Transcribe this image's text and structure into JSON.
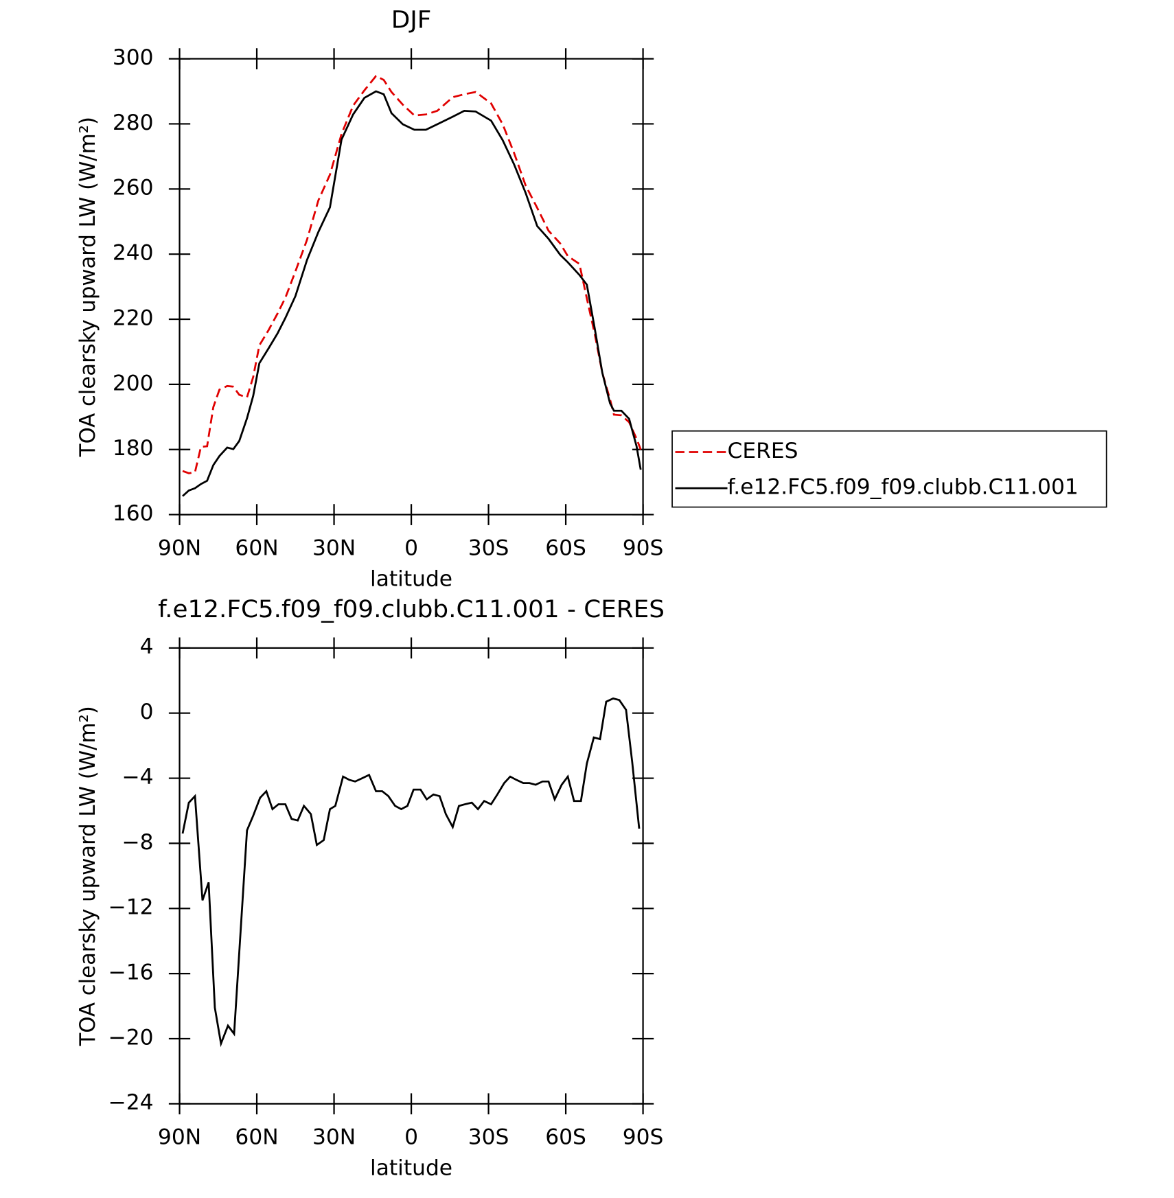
{
  "chart_data": [
    {
      "type": "line",
      "title": "DJF",
      "ylabel": "TOA clearsky upward LW (W/m²)",
      "xlabel": "latitude",
      "x": [
        88.8,
        86.4,
        84.0,
        81.7,
        79.3,
        76.9,
        74.5,
        71.5,
        69.1,
        66.8,
        63.8,
        61.4,
        59.0,
        55.4,
        51.9,
        48.9,
        45.0,
        40.5,
        36.1,
        31.6,
        27.1,
        22.6,
        18.2,
        13.7,
        10.7,
        7.7,
        3.3,
        -1.2,
        -5.7,
        -10.1,
        -16.1,
        -20.6,
        -25.0,
        -31.0,
        -35.5,
        -39.9,
        -44.4,
        -48.9,
        -53.3,
        -57.8,
        -60.8,
        -65.3,
        -68.2,
        -71.2,
        -74.2,
        -77.2,
        -78.7,
        -81.6,
        -84.6,
        -87.5,
        -89.1
      ],
      "series": [
        {
          "name": "CERES",
          "color": "#e00000",
          "dash": true,
          "values": [
            173.4,
            172.7,
            173,
            180.8,
            181,
            193,
            198.4,
            199.5,
            199.3,
            196.8,
            196,
            202.3,
            212,
            216.7,
            221.8,
            226.6,
            234.7,
            244.4,
            256.5,
            264.4,
            276.9,
            285.6,
            290.3,
            294.7,
            293.5,
            289.8,
            285.9,
            282.6,
            282.9,
            284,
            288.2,
            289.1,
            289.8,
            286.3,
            279.9,
            271.1,
            261.1,
            254.2,
            247.2,
            243.3,
            239.4,
            237,
            226.4,
            215.7,
            203.5,
            195.4,
            190.7,
            190.5,
            188.4,
            183.3,
            180
          ]
        },
        {
          "name": "f.e12.FC5.f09_f09.clubb.C11.001",
          "color": "#000000",
          "dash": false,
          "values": [
            165.7,
            167.4,
            168.1,
            169.4,
            170.4,
            175.2,
            178,
            180.6,
            180.1,
            182.6,
            189.6,
            196.5,
            206.5,
            211.1,
            215.7,
            220.4,
            227.1,
            238.2,
            246.8,
            254.4,
            275.2,
            282.9,
            288,
            290,
            289.1,
            283.3,
            279.9,
            278.2,
            278.2,
            279.9,
            282.2,
            284,
            283.8,
            281,
            275,
            267.6,
            258.8,
            248.6,
            244.7,
            239.8,
            237.5,
            233.6,
            230.6,
            217.4,
            203.5,
            194.2,
            191.9,
            191.9,
            189.4,
            181,
            173.8
          ]
        }
      ],
      "xlim": [
        90,
        -90
      ],
      "xticks": [
        {
          "value": 90,
          "label": "90N"
        },
        {
          "value": 60,
          "label": "60N"
        },
        {
          "value": 30,
          "label": "30N"
        },
        0,
        {
          "value": -30,
          "label": "30S"
        },
        {
          "value": -60,
          "label": "60S"
        },
        {
          "value": -90,
          "label": "90S"
        }
      ],
      "ylim": [
        160,
        300
      ],
      "yticks": [
        160,
        180,
        200,
        220,
        240,
        260,
        280,
        300
      ],
      "legend": "right"
    },
    {
      "type": "line",
      "title": "f.e12.FC5.f09_f09.clubb.C11.001 - CERES",
      "ylabel": "TOA clearsky upward LW (W/m²)",
      "xlabel": "latitude",
      "x": [
        88.8,
        86.4,
        84.0,
        81.1,
        78.7,
        76.3,
        73.9,
        71.2,
        68.8,
        63.8,
        61.4,
        58.7,
        56.3,
        53.9,
        51.6,
        48.9,
        46.5,
        44.1,
        41.7,
        39.0,
        36.7,
        34.0,
        31.6,
        29.5,
        26.5,
        24.1,
        21.8,
        19.1,
        16.4,
        13.7,
        11.3,
        8.9,
        6.3,
        3.9,
        1.5,
        -0.9,
        -3.6,
        -6.0,
        -8.6,
        -11.0,
        -13.4,
        -16.1,
        -18.5,
        -20.9,
        -23.5,
        -25.9,
        -28.3,
        -31.0,
        -33.4,
        -36.1,
        -38.4,
        -40.8,
        -43.5,
        -45.9,
        -48.3,
        -51.0,
        -53.3,
        -55.7,
        -58.4,
        -60.8,
        -63.2,
        -65.9,
        -68.2,
        -70.9,
        -73.3,
        -75.7,
        -78.4,
        -80.8,
        -83.4,
        -85.8,
        -88.5
      ],
      "series": [
        {
          "name": "f.e12.FC5.f09_f09.clubb.C11.001 - CERES",
          "color": "#000000",
          "dash": false,
          "values": [
            -7.4,
            -5.5,
            -5.1,
            -11.5,
            -10.4,
            -18.1,
            -20.3,
            -19.2,
            -19.7,
            -7.2,
            -6.3,
            -5.2,
            -4.8,
            -5.9,
            -5.6,
            -5.6,
            -6.5,
            -6.6,
            -5.7,
            -6.2,
            -8.1,
            -7.8,
            -5.9,
            -5.7,
            -3.9,
            -4.1,
            -4.2,
            -4,
            -3.8,
            -4.8,
            -4.8,
            -5.1,
            -5.7,
            -5.9,
            -5.7,
            -4.7,
            -4.7,
            -5.3,
            -5,
            -5.1,
            -6.2,
            -7,
            -5.7,
            -5.6,
            -5.5,
            -5.9,
            -5.4,
            -5.6,
            -5,
            -4.3,
            -3.9,
            -4.1,
            -4.3,
            -4.3,
            -4.4,
            -4.2,
            -4.2,
            -5.3,
            -4.4,
            -3.9,
            -5.4,
            -5.4,
            -3.1,
            -1.5,
            -1.6,
            0.7,
            0.9,
            0.8,
            0.2,
            -3,
            -7.1
          ]
        }
      ],
      "xlim": [
        90,
        -90
      ],
      "xticks": [
        {
          "value": 90,
          "label": "90N"
        },
        {
          "value": 60,
          "label": "60N"
        },
        {
          "value": 30,
          "label": "30N"
        },
        0,
        {
          "value": -30,
          "label": "30S"
        },
        {
          "value": -60,
          "label": "60S"
        },
        {
          "value": -90,
          "label": "90S"
        }
      ],
      "ylim": [
        -24,
        4
      ],
      "yticks": [
        {
          "value": -24,
          "label": "−24"
        },
        {
          "value": -20,
          "label": "−20"
        },
        {
          "value": -16,
          "label": "−16"
        },
        {
          "value": -12,
          "label": "−12"
        },
        {
          "value": -8,
          "label": "−8"
        },
        {
          "value": -4,
          "label": "−4"
        },
        0,
        4
      ]
    }
  ]
}
